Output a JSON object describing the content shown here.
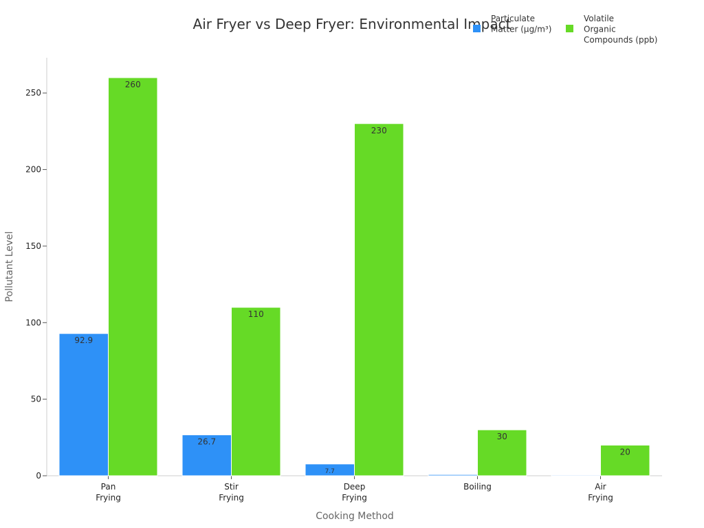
{
  "chart_data": {
    "type": "bar",
    "title": "Air Fryer vs Deep Fryer: Environmental Impact",
    "xlabel": "Cooking Method",
    "ylabel": "Pollutant Level",
    "ylim": [
      0,
      273
    ],
    "yticks": [
      0,
      50,
      100,
      150,
      200,
      250
    ],
    "grid": false,
    "legend_position": "top-right",
    "categories": [
      [
        "Pan",
        "Frying"
      ],
      [
        "Stir",
        "Frying"
      ],
      [
        "Deep",
        "Frying"
      ],
      [
        "Boiling"
      ],
      [
        "Air",
        "Frying"
      ]
    ],
    "series": [
      {
        "name": [
          "Particulate",
          "Matter (μg/m³)"
        ],
        "color": "#2e91f7",
        "values": [
          92.9,
          26.7,
          7.7,
          0.8,
          0.5
        ],
        "labels": [
          "92.9",
          "26.7",
          "7.7",
          null,
          null
        ]
      },
      {
        "name": [
          "Volatile",
          "Organic",
          "Compounds (ppb)"
        ],
        "color": "#66da26",
        "values": [
          260,
          110,
          230,
          30,
          20
        ],
        "labels": [
          "260",
          "110",
          "230",
          "30",
          "20"
        ]
      }
    ]
  }
}
